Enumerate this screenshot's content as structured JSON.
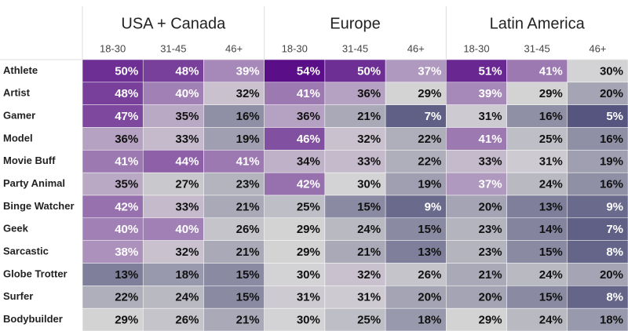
{
  "chart_data": {
    "type": "heatmap",
    "groups": [
      "USA + Canada",
      "Europe",
      "Latin America"
    ],
    "columns": [
      "18-30",
      "31-45",
      "46+"
    ],
    "rows": [
      "Athlete",
      "Artist",
      "Gamer",
      "Model",
      "Movie Buff",
      "Party Animal",
      "Binge Watcher",
      "Geek",
      "Sarcastic",
      "Globe Trotter",
      "Surfer",
      "Bodybuilder"
    ],
    "values": [
      [
        50,
        48,
        39,
        54,
        50,
        37,
        51,
        41,
        30
      ],
      [
        48,
        40,
        32,
        41,
        36,
        29,
        39,
        29,
        20
      ],
      [
        47,
        35,
        16,
        36,
        21,
        7,
        31,
        16,
        5
      ],
      [
        36,
        33,
        19,
        46,
        32,
        22,
        41,
        25,
        16
      ],
      [
        41,
        44,
        41,
        34,
        33,
        22,
        33,
        31,
        19
      ],
      [
        35,
        27,
        23,
        42,
        30,
        19,
        37,
        24,
        16
      ],
      [
        42,
        33,
        21,
        25,
        15,
        9,
        20,
        13,
        9
      ],
      [
        40,
        40,
        26,
        29,
        24,
        15,
        23,
        14,
        7
      ],
      [
        38,
        32,
        21,
        29,
        21,
        13,
        23,
        15,
        8
      ],
      [
        13,
        18,
        15,
        30,
        32,
        26,
        21,
        24,
        20
      ],
      [
        22,
        24,
        15,
        31,
        31,
        20,
        20,
        15,
        8
      ],
      [
        29,
        26,
        21,
        30,
        25,
        18,
        29,
        24,
        18
      ]
    ],
    "value_labels": [
      [
        "50%",
        "48%",
        "39%",
        "54%",
        "50%",
        "37%",
        "51%",
        "41%",
        "30%"
      ],
      [
        "48%",
        "40%",
        "32%",
        "41%",
        "36%",
        "29%",
        "39%",
        "29%",
        "20%"
      ],
      [
        "47%",
        "35%",
        "16%",
        "36%",
        "21%",
        "7%",
        "31%",
        "16%",
        "5%"
      ],
      [
        "36%",
        "33%",
        "19%",
        "46%",
        "32%",
        "22%",
        "41%",
        "25%",
        "16%"
      ],
      [
        "41%",
        "44%",
        "41%",
        "34%",
        "33%",
        "22%",
        "33%",
        "31%",
        "19%"
      ],
      [
        "35%",
        "27%",
        "23%",
        "42%",
        "30%",
        "19%",
        "37%",
        "24%",
        "16%"
      ],
      [
        "42%",
        "33%",
        "21%",
        "25%",
        "15%",
        "9%",
        "20%",
        "13%",
        "9%"
      ],
      [
        "40%",
        "40%",
        "26%",
        "29%",
        "24%",
        "15%",
        "23%",
        "14%",
        "7%"
      ],
      [
        "38%",
        "32%",
        "21%",
        "29%",
        "21%",
        "13%",
        "23%",
        "15%",
        "8%"
      ],
      [
        "13%",
        "18%",
        "15%",
        "30%",
        "32%",
        "26%",
        "21%",
        "24%",
        "20%"
      ],
      [
        "22%",
        "24%",
        "15%",
        "31%",
        "31%",
        "20%",
        "20%",
        "15%",
        "8%"
      ],
      [
        "29%",
        "26%",
        "21%",
        "30%",
        "25%",
        "18%",
        "29%",
        "24%",
        "18%"
      ]
    ],
    "colors": [
      "#55557f",
      "#d6d6d6",
      "#5a0f88"
    ]
  }
}
